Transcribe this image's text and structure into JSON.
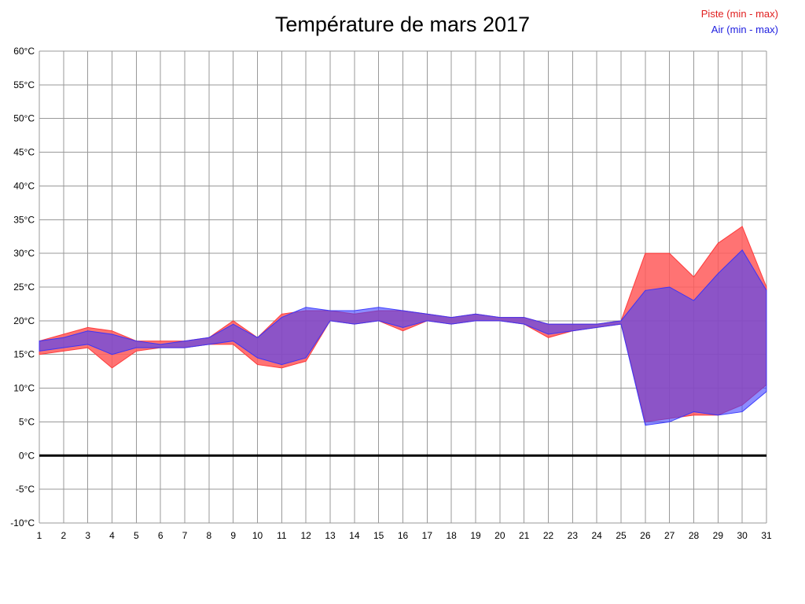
{
  "page": {
    "background": "#ffffff"
  },
  "header": {
    "title": "Température de mars 2017"
  },
  "legend": {
    "items": [
      {
        "label": "Piste (min - max)",
        "color": "#e02020"
      },
      {
        "label": "Air (min - max)",
        "color": "#2020e0"
      }
    ]
  },
  "chart_data": {
    "type": "area",
    "title": "Température de mars 2017",
    "x": [
      1,
      2,
      3,
      4,
      5,
      6,
      7,
      8,
      9,
      10,
      11,
      12,
      13,
      14,
      15,
      16,
      17,
      18,
      19,
      20,
      21,
      22,
      23,
      24,
      25,
      26,
      27,
      28,
      29,
      30,
      31
    ],
    "x_tick_labels": [
      "1",
      "2",
      "3",
      "4",
      "5",
      "6",
      "7",
      "8",
      "9",
      "10",
      "11",
      "12",
      "13",
      "14",
      "15",
      "16",
      "17",
      "18",
      "19",
      "20",
      "21",
      "22",
      "23",
      "24",
      "25",
      "26",
      "27",
      "28",
      "29",
      "30",
      "31"
    ],
    "ylim": [
      -10,
      60
    ],
    "ytick_step": 5,
    "ytick_suffix": "°C",
    "grid": {
      "show": true,
      "color": "#999999"
    },
    "zero_line": {
      "value": 0,
      "color": "#000000",
      "width": 3
    },
    "legend_position": "top-right",
    "series": [
      {
        "key": "piste",
        "name": "Piste (min - max)",
        "fill": "#ff5a5a",
        "fill_opacity": 0.85,
        "stroke": "#ff3030",
        "min": [
          15,
          15.5,
          16,
          13,
          15.5,
          16,
          16,
          16.5,
          16.5,
          13.5,
          13,
          14,
          20,
          19.5,
          20,
          18.5,
          20,
          19.5,
          20,
          20,
          19.5,
          17.5,
          18.5,
          19,
          19.5,
          5,
          5.5,
          6,
          6,
          7.5,
          10.5
        ],
        "max": [
          17,
          18,
          19,
          18.5,
          17,
          17,
          17,
          17.5,
          20,
          17.5,
          21,
          21.5,
          21.5,
          21,
          21.5,
          21.5,
          21,
          20.5,
          21,
          20.5,
          20.5,
          19.5,
          19.5,
          19.5,
          20,
          30,
          30,
          26.5,
          31.5,
          34,
          25
        ]
      },
      {
        "key": "air",
        "name": "Air (min - max)",
        "fill": "#4040ff",
        "fill_opacity": 0.6,
        "stroke": "#3030ff",
        "min": [
          15.5,
          16,
          16.5,
          15,
          16,
          16,
          16,
          16.5,
          17,
          14.5,
          13.5,
          14.5,
          20,
          19.5,
          20,
          19,
          20,
          19.5,
          20,
          20,
          19.5,
          18,
          18.5,
          19,
          19.5,
          4.5,
          5,
          6.5,
          6,
          6.5,
          9.5
        ],
        "max": [
          17,
          17.5,
          18.5,
          18,
          17,
          16.5,
          17,
          17.5,
          19.5,
          17.5,
          20.5,
          22,
          21.5,
          21.5,
          22,
          21.5,
          21,
          20.5,
          21,
          20.5,
          20.5,
          19.5,
          19.5,
          19.5,
          20,
          24.5,
          25,
          23,
          27,
          30.5,
          24.5
        ]
      }
    ]
  }
}
